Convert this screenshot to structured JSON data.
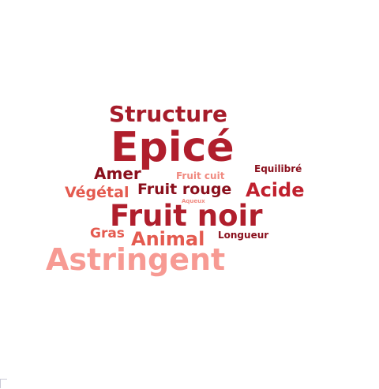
{
  "words": [
    {
      "text": "Structure",
      "color": "#a61c2a"
    },
    {
      "text": "Epicé",
      "color": "#b01e2c"
    },
    {
      "text": "Amer",
      "color": "#8a0f1c"
    },
    {
      "text": "Fruit cuit",
      "color": "#f08a80"
    },
    {
      "text": "Equilibré",
      "color": "#8a0f1c"
    },
    {
      "text": "Végétal",
      "color": "#e45a4f"
    },
    {
      "text": "Fruit rouge",
      "color": "#8a0f1c"
    },
    {
      "text": "Acide",
      "color": "#c0202d"
    },
    {
      "text": "Aqueux",
      "color": "#f08a80"
    },
    {
      "text": "Fruit noir",
      "color": "#b01e2c"
    },
    {
      "text": "Gras",
      "color": "#e45a4f"
    },
    {
      "text": "Animal",
      "color": "#e45a4f"
    },
    {
      "text": "Longueur",
      "color": "#8a0f1c"
    },
    {
      "text": "Astringent",
      "color": "#f79a93"
    }
  ]
}
